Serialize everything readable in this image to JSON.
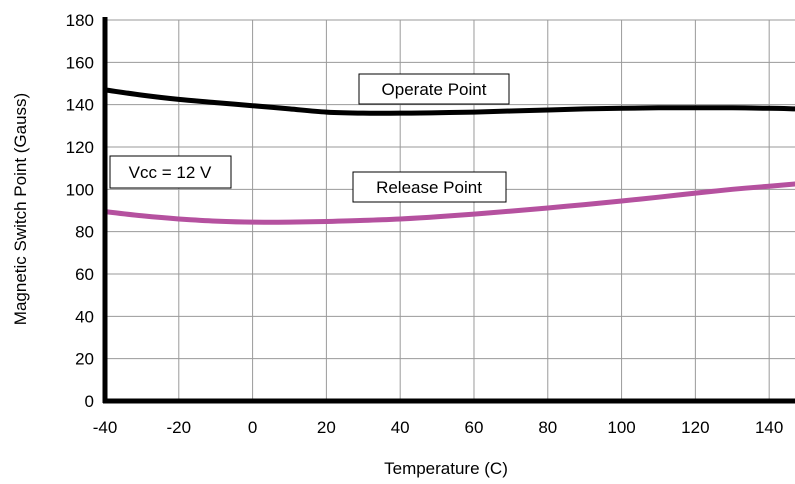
{
  "chart_data": {
    "type": "line",
    "xlabel": "Temperature (C)",
    "ylabel": "Magnetic Switch Point (Gauss)",
    "xlim": [
      -40,
      147
    ],
    "ylim": [
      0,
      180
    ],
    "xticks": [
      -40,
      -20,
      0,
      20,
      40,
      60,
      80,
      100,
      120,
      140
    ],
    "yticks": [
      0,
      20,
      40,
      60,
      80,
      100,
      120,
      140,
      160,
      180
    ],
    "grid": true,
    "series": [
      {
        "label": "Operate Point",
        "color": "#000000",
        "x": [
          -40,
          -30,
          -20,
          -10,
          0,
          10,
          20,
          30,
          40,
          50,
          60,
          70,
          80,
          90,
          100,
          110,
          120,
          130,
          140,
          147
        ],
        "y": [
          147,
          144.5,
          142.5,
          141,
          139.5,
          138,
          136.5,
          136,
          136,
          136.2,
          136.5,
          137,
          137.5,
          138,
          138.3,
          138.5,
          138.5,
          138.5,
          138.3,
          138
        ]
      },
      {
        "label": "Release Point",
        "color": "#b5519f",
        "x": [
          -40,
          -30,
          -20,
          -10,
          0,
          10,
          20,
          30,
          40,
          50,
          60,
          70,
          80,
          90,
          100,
          110,
          120,
          130,
          140,
          147
        ],
        "y": [
          89.5,
          87.5,
          86,
          85,
          84.5,
          84.5,
          84.8,
          85.3,
          86,
          87,
          88.3,
          89.7,
          91.2,
          92.8,
          94.5,
          96.3,
          98.2,
          100,
          101.5,
          102.5
        ]
      }
    ],
    "annotations": [
      {
        "text": "Operate Point"
      },
      {
        "text": "Release Point"
      },
      {
        "text": "Vcc = 12 V"
      }
    ]
  }
}
